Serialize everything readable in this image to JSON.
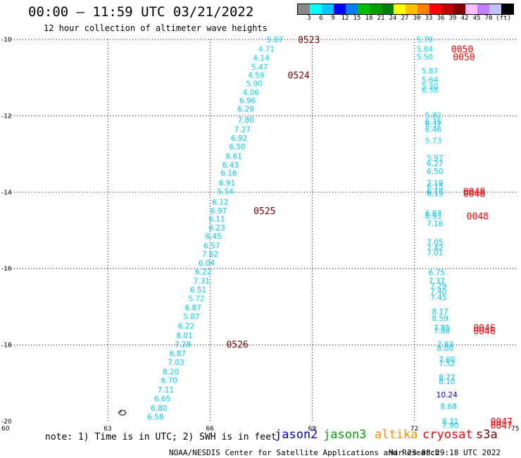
{
  "header": {
    "title": "00:00 – 11:59 UTC 03/21/2022",
    "subtitle": "12 hour collection of altimeter wave heights"
  },
  "colorbar": {
    "colors": [
      "#888888",
      "#00ffff",
      "#00c8ff",
      "#0000ff",
      "#0080ff",
      "#00c000",
      "#00a000",
      "#008000",
      "#ffff00",
      "#ffc000",
      "#ff8000",
      "#ff0000",
      "#c00000",
      "#800000",
      "#ffc0ff",
      "#c080ff",
      "#c0c0ff",
      "#000000"
    ],
    "ticks": [
      "3",
      "6",
      "9",
      "12",
      "15",
      "18",
      "21",
      "24",
      "27",
      "30",
      "33",
      "36",
      "39",
      "42",
      "45",
      "70",
      "(ft)"
    ]
  },
  "axes": {
    "x_labels": [
      "60",
      "63",
      "66",
      "69",
      "72",
      "75"
    ],
    "y_labels": [
      "-10",
      "-12",
      "-14",
      "-16",
      "-18",
      "-20"
    ]
  },
  "chart_data": {
    "type": "scatter",
    "xlim": [
      60,
      75
    ],
    "ylim": [
      -20,
      -10
    ],
    "grid": true,
    "left_track": {
      "values": [
        "5.87",
        "4.71",
        "4.14",
        "5.47",
        "4.59",
        "5.90",
        "4.06",
        "6.96",
        "6.29",
        "7.80",
        "7.27",
        "6.92",
        "6.50",
        "6.61",
        "6.43",
        "6.16",
        "6.91",
        "5.54",
        "6.12",
        "6.97",
        "6.11",
        "6.23",
        "6.45",
        "6.57",
        "7.62",
        "6.04",
        "6.22",
        "7.31",
        "6.51",
        "5.72",
        "6.87",
        "5.87",
        "6.22",
        "8.01",
        "7.28",
        "6.87",
        "7.03",
        "8.20",
        "6.70",
        "7.11",
        "6.65",
        "6.80",
        "6.58"
      ],
      "lon": [
        67.9,
        67.65,
        67.5,
        67.45,
        67.35,
        67.3,
        67.2,
        67.1,
        67.05,
        67.05,
        66.95,
        66.85,
        66.8,
        66.7,
        66.6,
        66.55,
        66.5,
        66.45,
        66.3,
        66.25,
        66.2,
        66.2,
        66.1,
        66.05,
        66.0,
        65.9,
        65.8,
        65.75,
        65.65,
        65.6,
        65.5,
        65.45,
        65.3,
        65.25,
        65.2,
        65.05,
        65.0,
        64.85,
        64.8,
        64.7,
        64.6,
        64.5,
        64.4
      ],
      "lat": [
        -10.0,
        -10.25,
        -10.48,
        -10.72,
        -10.93,
        -11.15,
        -11.38,
        -11.6,
        -11.82,
        -12.1,
        -12.35,
        -12.58,
        -12.8,
        -13.05,
        -13.28,
        -13.5,
        -13.75,
        -13.98,
        -14.25,
        -14.48,
        -14.7,
        -14.93,
        -15.15,
        -15.4,
        -15.62,
        -15.85,
        -16.08,
        -16.32,
        -16.55,
        -16.78,
        -17.02,
        -17.25,
        -17.5,
        -17.75,
        -17.98,
        -18.22,
        -18.45,
        -18.7,
        -18.92,
        -19.17,
        -19.4,
        -19.65,
        -19.88
      ],
      "colors": [
        "#00d8ff",
        "#00d8ff",
        "#00d8ff",
        "#00d8ff",
        "#00d8ff",
        "#00d8ff",
        "#00d8ff",
        "#00c8ff",
        "#00c8ff",
        "#00c8ff",
        "#00c8ff",
        "#00c8ff",
        "#00c8ff",
        "#00c8ff",
        "#00c8ff",
        "#00c8ff",
        "#00c8ff",
        "#00d8ff",
        "#00c8ff",
        "#00c8ff",
        "#00c8ff",
        "#00c8ff",
        "#00c8ff",
        "#00c8ff",
        "#00c8ff",
        "#00c8ff",
        "#00c8ff",
        "#00c8ff",
        "#00c8ff",
        "#00d8ff",
        "#00c8ff",
        "#00d8ff",
        "#00c8ff",
        "#00c8ff",
        "#00c8ff",
        "#00c8ff",
        "#00c8ff",
        "#00c8ff",
        "#00c8ff",
        "#00c8ff",
        "#00c8ff",
        "#00c8ff",
        "#00c8ff"
      ]
    },
    "right_track": {
      "values": [
        "5.70",
        "5.84",
        "5.50",
        "5.87",
        "5.64",
        "5.30",
        "6.38",
        "5.82",
        "6.35",
        "6.31",
        "6.46",
        "5.73",
        "5.97",
        "6.27",
        "6.50",
        "7.19",
        "6.15",
        "6.18",
        "6.13",
        "6.83",
        "6.93",
        "7.16",
        "7.05",
        "7.42",
        "7.01",
        "6.75",
        "7.37",
        "7.29",
        "7.40",
        "7.45",
        "8.17",
        "8.59",
        "7.85",
        "7.86",
        "7.83",
        "8.00",
        "7.60",
        "7.52",
        "8.77",
        "8.10",
        "10.24",
        "8.68",
        "8.31",
        "7.90"
      ],
      "lon": [
        72.3,
        72.3,
        72.3,
        72.45,
        72.45,
        72.45,
        72.45,
        72.55,
        72.55,
        72.55,
        72.55,
        72.55,
        72.6,
        72.6,
        72.6,
        72.6,
        72.6,
        72.6,
        72.6,
        72.55,
        72.55,
        72.6,
        72.6,
        72.6,
        72.6,
        72.65,
        72.65,
        72.7,
        72.7,
        72.7,
        72.75,
        72.75,
        72.8,
        72.8,
        72.9,
        72.9,
        72.95,
        72.95,
        72.95,
        72.95,
        72.95,
        73.0,
        73.05,
        73.05
      ],
      "lat": [
        -10.0,
        -10.25,
        -10.45,
        -10.82,
        -11.05,
        -11.22,
        -11.32,
        -11.98,
        -12.15,
        -12.22,
        -12.35,
        -12.65,
        -13.1,
        -13.25,
        -13.45,
        -13.75,
        -13.85,
        -13.98,
        -14.03,
        -14.55,
        -14.62,
        -14.82,
        -15.3,
        -15.45,
        -15.58,
        -16.1,
        -16.32,
        -16.45,
        -16.6,
        -16.75,
        -17.12,
        -17.3,
        -17.55,
        -17.63,
        -17.98,
        -18.08,
        -18.38,
        -18.48,
        -18.85,
        -18.95,
        -19.3,
        -19.6,
        -20.0,
        -20.1
      ],
      "colors": [
        "#00d8ff",
        "#00d8ff",
        "#00d8ff",
        "#00d8ff",
        "#00d8ff",
        "#00d8ff",
        "#00d8ff",
        "#00d8ff",
        "#00c8ff",
        "#00c8ff",
        "#00c8ff",
        "#00d8ff",
        "#00d8ff",
        "#00c8ff",
        "#00c8ff",
        "#00c8ff",
        "#00c8ff",
        "#00c8ff",
        "#00c8ff",
        "#00c8ff",
        "#00c8ff",
        "#00c8ff",
        "#00c8ff",
        "#00c8ff",
        "#00c8ff",
        "#00c8ff",
        "#00c8ff",
        "#00c8ff",
        "#00c8ff",
        "#00c8ff",
        "#00c8ff",
        "#00c8ff",
        "#00c8ff",
        "#00c8ff",
        "#00c8ff",
        "#00c8ff",
        "#00c8ff",
        "#00c8ff",
        "#00c8ff",
        "#00c8ff",
        "#0000e0",
        "#00c8ff",
        "#00c8ff",
        "#00c8ff"
      ]
    },
    "time_labels": [
      {
        "text": "0523",
        "lon": 68.9,
        "lat": -10.0,
        "color": "#800000"
      },
      {
        "text": "0524",
        "lon": 68.6,
        "lat": -10.93,
        "color": "#800000"
      },
      {
        "text": "0525",
        "lon": 67.6,
        "lat": -14.48,
        "color": "#800000"
      },
      {
        "text": "0526",
        "lon": 66.8,
        "lat": -17.98,
        "color": "#800000"
      },
      {
        "text": "0050",
        "lon": 73.4,
        "lat": -10.25,
        "color": "#ff0000"
      },
      {
        "text": "0050",
        "lon": 73.45,
        "lat": -10.45,
        "color": "#ff0000"
      },
      {
        "text": "0048",
        "lon": 73.75,
        "lat": -13.98,
        "color": "#ff0000"
      },
      {
        "text": "0048",
        "lon": 73.75,
        "lat": -14.03,
        "color": "#ff0000"
      },
      {
        "text": "0048",
        "lon": 73.85,
        "lat": -14.62,
        "color": "#ff0000"
      },
      {
        "text": "0046",
        "lon": 74.05,
        "lat": -17.55,
        "color": "#ff0000"
      },
      {
        "text": "0046",
        "lon": 74.05,
        "lat": -17.63,
        "color": "#ff0000"
      },
      {
        "text": "0047",
        "lon": 74.55,
        "lat": -20.0,
        "color": "#ff0000"
      },
      {
        "text": "0047",
        "lon": 74.55,
        "lat": -20.1,
        "color": "#ff0000"
      }
    ]
  },
  "footer": {
    "note": "note: 1) Time is in UTC; 2) SWH is in feet",
    "legend": [
      {
        "label": "jason2",
        "color": "#0000c8"
      },
      {
        "label": "jason3",
        "color": "#00a000"
      },
      {
        "label": "altika",
        "color": "#ff9000"
      },
      {
        "label": "cryosat",
        "color": "#ff0000"
      },
      {
        "label": "s3a",
        "color": "#800000"
      }
    ],
    "credit": "NOAA/NESDIS Center for Satellite Applications and Research",
    "timestamp": "Mar 23 08:29:18 UTC 2022"
  }
}
